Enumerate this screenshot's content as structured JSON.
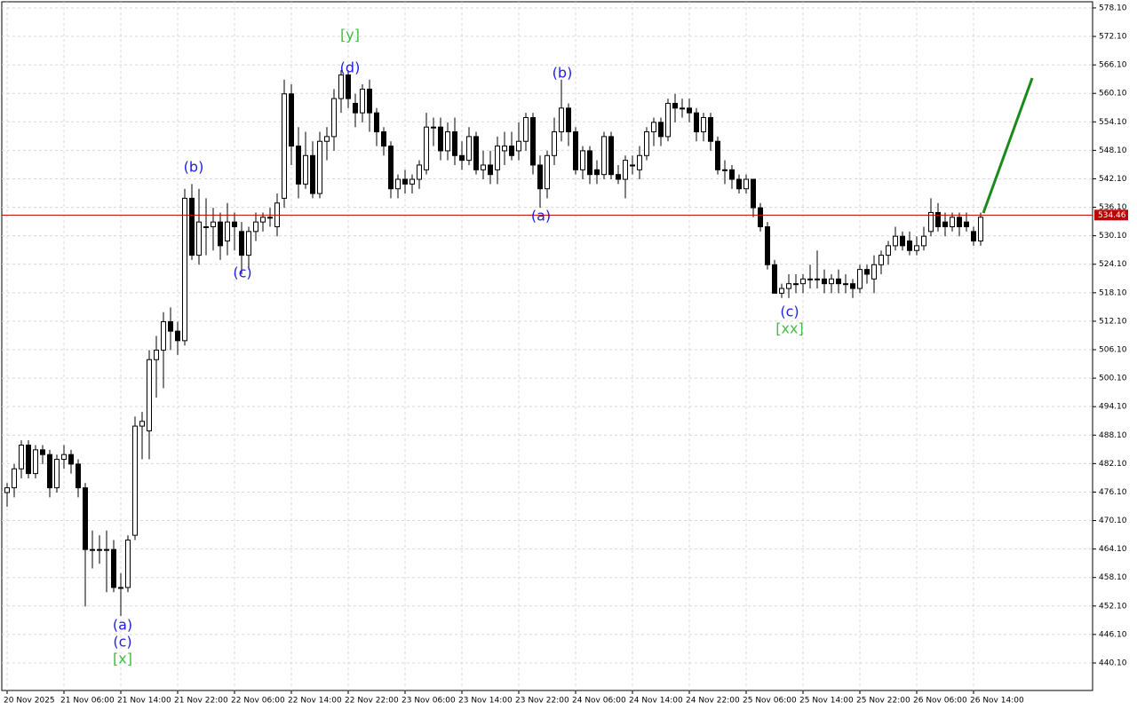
{
  "chart_data": {
    "type": "candlestick",
    "categories": [
      "20 Nov 2025",
      null,
      null,
      null,
      null,
      null,
      null,
      null,
      "21 Nov 06:00",
      null,
      null,
      null,
      null,
      null,
      null,
      null,
      "21 Nov 14:00",
      null,
      null,
      null,
      null,
      null,
      null,
      null,
      "21 Nov 22:00",
      null,
      null,
      null,
      null,
      null,
      null,
      null,
      "22 Nov 06:00",
      null,
      null,
      null,
      null,
      null,
      null,
      null,
      "22 Nov 14:00",
      null,
      null,
      null,
      null,
      null,
      null,
      null,
      "22 Nov 22:00",
      null,
      null,
      null,
      null,
      null,
      null,
      null,
      "23 Nov 06:00",
      null,
      null,
      null,
      null,
      null,
      null,
      null,
      "23 Nov 14:00",
      null,
      null,
      null,
      null,
      null,
      null,
      null,
      "23 Nov 22:00",
      null,
      null,
      null,
      null,
      null,
      null,
      null,
      "24 Nov 06:00",
      null,
      null,
      null,
      null,
      null,
      null,
      null,
      "24 Nov 14:00",
      null,
      null,
      null,
      null,
      null,
      null,
      null,
      "24 Nov 22:00",
      null,
      null,
      null,
      null,
      null,
      null,
      null,
      "25 Nov 06:00",
      null,
      null,
      null,
      null,
      null,
      null,
      null,
      "25 Nov 14:00",
      null,
      null,
      null,
      null,
      null,
      null,
      null,
      "25 Nov 22:00",
      null,
      null,
      null,
      null,
      null,
      null,
      null,
      "26 Nov 06:00",
      null,
      null,
      null,
      null,
      null,
      null,
      null,
      "26 Nov 14:00",
      null
    ],
    "open": [
      476,
      477,
      481,
      486,
      480,
      485,
      484,
      477,
      483,
      484,
      482,
      477,
      464,
      464,
      464,
      464,
      456,
      456,
      467,
      490,
      489,
      504,
      506,
      512,
      510,
      508,
      538,
      526,
      532,
      532,
      533,
      529,
      533,
      531,
      526,
      531,
      533,
      534,
      532,
      538,
      560,
      549,
      541,
      547,
      539,
      550,
      551,
      559,
      564,
      558,
      556,
      561,
      556,
      552,
      549,
      540,
      542,
      541,
      542,
      544,
      553,
      553,
      548,
      552,
      547,
      546,
      551,
      544,
      545,
      544,
      548,
      549,
      548,
      550,
      555,
      545,
      540,
      547,
      552,
      557,
      552,
      544,
      548,
      544,
      543,
      551,
      543,
      542,
      545,
      544,
      547,
      552,
      554,
      551,
      558,
      557,
      557,
      556,
      552,
      555,
      550,
      544,
      544,
      542,
      540,
      542,
      536,
      532,
      524,
      518,
      519,
      520,
      520,
      521,
      521,
      521,
      520,
      521,
      520,
      520,
      519,
      523,
      521,
      524,
      526,
      528,
      530,
      529,
      527,
      528,
      531,
      535,
      533,
      532,
      534,
      533,
      531,
      529
    ],
    "high": [
      478,
      482,
      487,
      487,
      486,
      486,
      485,
      484,
      486,
      485,
      483,
      478,
      468,
      467,
      468,
      466,
      459,
      467,
      492,
      493,
      506,
      509,
      514,
      515,
      512,
      540,
      541,
      540,
      538,
      536,
      535,
      537,
      535,
      533,
      532,
      535,
      535,
      536,
      539,
      563,
      562,
      553,
      552,
      550,
      552,
      553,
      561,
      565,
      565,
      560,
      562,
      563,
      557,
      553,
      550,
      543,
      544,
      543,
      546,
      556,
      555,
      555,
      554,
      555,
      550,
      553,
      552,
      548,
      548,
      551,
      552,
      552,
      554,
      556,
      556,
      547,
      548,
      555,
      563,
      558,
      553,
      549,
      549,
      546,
      552,
      552,
      545,
      547,
      547,
      549,
      553,
      555,
      555,
      559,
      560,
      559,
      559,
      557,
      556,
      556,
      551,
      546,
      545,
      543,
      543,
      542,
      537,
      533,
      525,
      520,
      522,
      522,
      522,
      524,
      527,
      523,
      522,
      523,
      522,
      521,
      524,
      524,
      526,
      527,
      529,
      532,
      531,
      531,
      530,
      532,
      538,
      537,
      535,
      535,
      535,
      535,
      532,
      535
    ],
    "low": [
      473,
      475,
      479,
      479,
      479,
      482,
      475,
      476,
      481,
      480,
      475,
      452,
      460,
      461,
      455,
      455,
      450,
      455,
      466,
      483,
      483,
      496,
      498,
      506,
      505,
      507,
      525,
      524,
      526,
      527,
      525,
      526,
      527,
      522,
      523,
      529,
      531,
      532,
      530,
      536,
      545,
      538,
      540,
      538,
      538,
      546,
      548,
      556,
      557,
      553,
      554,
      552,
      549,
      547,
      538,
      538,
      539,
      539,
      540,
      543,
      549,
      546,
      546,
      545,
      544,
      545,
      543,
      542,
      541,
      541,
      545,
      546,
      546,
      548,
      543,
      536,
      538,
      545,
      550,
      549,
      543,
      542,
      541,
      541,
      542,
      542,
      541,
      538,
      543,
      542,
      546,
      549,
      549,
      550,
      554,
      555,
      554,
      550,
      550,
      548,
      543,
      541,
      540,
      539,
      539,
      534,
      531,
      523,
      518,
      517,
      517,
      518,
      518,
      519,
      519,
      518,
      518,
      518,
      518,
      517,
      518,
      520,
      518,
      522,
      524,
      527,
      527,
      526,
      526,
      527,
      530,
      531,
      530,
      531,
      530,
      531,
      528,
      528
    ],
    "close": [
      477,
      481,
      486,
      480,
      485,
      484,
      477,
      483,
      484,
      482,
      477,
      464,
      464,
      464,
      464,
      456,
      456,
      466,
      490,
      491,
      504,
      506,
      512,
      510,
      508,
      538,
      526,
      533,
      532,
      533,
      528,
      533,
      532,
      526,
      531,
      533,
      534,
      534,
      537,
      560,
      549,
      541,
      547,
      539,
      550,
      551,
      559,
      564,
      559,
      556,
      561,
      556,
      552,
      549,
      540,
      542,
      541,
      542,
      545,
      553,
      553,
      548,
      552,
      547,
      546,
      551,
      544,
      545,
      543,
      549,
      549,
      547,
      550,
      555,
      545,
      540,
      547,
      552,
      557,
      552,
      544,
      548,
      543,
      543,
      551,
      543,
      542,
      546,
      545,
      547,
      552,
      554,
      551,
      558,
      557,
      557,
      556,
      552,
      555,
      550,
      544,
      544,
      542,
      540,
      542,
      536,
      532,
      524,
      518,
      519,
      520,
      520,
      521,
      521,
      521,
      520,
      521,
      520,
      520,
      519,
      523,
      522,
      524,
      526,
      528,
      530,
      528,
      527,
      528,
      530,
      535,
      532,
      532,
      534,
      532,
      532,
      529,
      534
    ],
    "up_color": "#ffffff",
    "down_color": "#000000",
    "wick_color": "#000000",
    "current_price": 534.46,
    "current_price_color": "#c00000",
    "ylim": [
      434.3,
      579.4
    ],
    "yticks": [
      {
        "value": 440.1,
        "label": "440.10"
      },
      {
        "value": 446.1,
        "label": "446.10"
      },
      {
        "value": 452.1,
        "label": "452.10"
      },
      {
        "value": 458.1,
        "label": "458.10"
      },
      {
        "value": 464.1,
        "label": "464.10"
      },
      {
        "value": 470.1,
        "label": "470.10"
      },
      {
        "value": 476.1,
        "label": "476.10"
      },
      {
        "value": 482.1,
        "label": "482.10"
      },
      {
        "value": 488.1,
        "label": "488.10"
      },
      {
        "value": 494.1,
        "label": "494.10"
      },
      {
        "value": 500.1,
        "label": "500.10"
      },
      {
        "value": 506.1,
        "label": "506.10"
      },
      {
        "value": 512.1,
        "label": "512.10"
      },
      {
        "value": 518.1,
        "label": "518.10"
      },
      {
        "value": 524.1,
        "label": "524.10"
      },
      {
        "value": 530.1,
        "label": "530.10"
      },
      {
        "value": 536.1,
        "label": "536.10"
      },
      {
        "value": 542.1,
        "label": "542.10"
      },
      {
        "value": 548.1,
        "label": "548.10"
      },
      {
        "value": 554.1,
        "label": "554.10"
      },
      {
        "value": 560.1,
        "label": "560.10"
      },
      {
        "value": 566.1,
        "label": "566.10"
      },
      {
        "value": 572.1,
        "label": "572.10"
      },
      {
        "value": 578.1,
        "label": "578.10"
      }
    ],
    "grid": true,
    "annotations": [
      {
        "text": "[y]",
        "color": "#44bb44"
      },
      {
        "text": "(d)",
        "color": "#2222dd"
      },
      {
        "text": "(b)",
        "color": "#2222dd"
      },
      {
        "text": "(c)",
        "color": "#2222dd"
      },
      {
        "text": "(b)",
        "color": "#2222dd"
      },
      {
        "text": "(a)",
        "color": "#2222dd"
      },
      {
        "text": "(c)",
        "color": "#2222dd"
      },
      {
        "text": "[xx]",
        "color": "#44bb44"
      },
      {
        "text": "(a)",
        "color": "#2222dd"
      },
      {
        "text": "(c)",
        "color": "#2222dd"
      },
      {
        "text": "[x]",
        "color": "#44bb44"
      }
    ]
  }
}
